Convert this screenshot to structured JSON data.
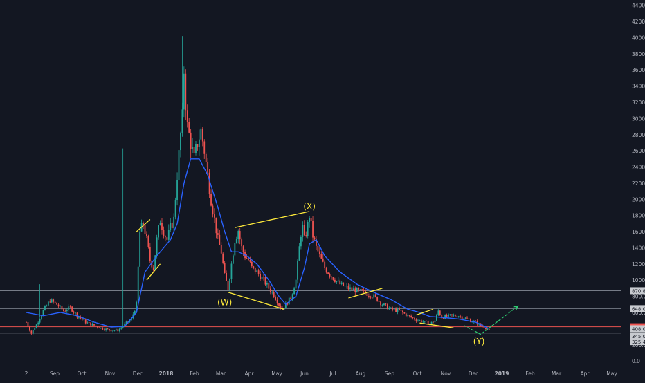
{
  "chart_data": {
    "type": "candlestick",
    "colors": {
      "background": "#131722",
      "up": "#26a69a",
      "down": "#ef5350",
      "ma": "#2962ff",
      "wave": "#ffeb3b",
      "projection": "#2ecc71",
      "level": "#9aa0aa",
      "current_level": "#ef5350",
      "tick_text": "#b2b5be"
    },
    "y_axis": {
      "ticks": [
        "0.0",
        "200.0",
        "400.0",
        "600.0",
        "800.0",
        "1000.0",
        "1200.0",
        "1400.0",
        "1600.0",
        "1800.0",
        "2000.0",
        "2200.0",
        "2400.0",
        "2600.0",
        "2800.0",
        "3000.0",
        "3200.0",
        "3400.0",
        "3600.0",
        "3800.0",
        "4000.0",
        "4200.0",
        "4400.0"
      ],
      "range": [
        -50,
        4440
      ]
    },
    "x_axis": {
      "ticks": [
        "2",
        "Sep",
        "Oct",
        "Nov",
        "Dec",
        "2018",
        "Feb",
        "Mar",
        "Apr",
        "May",
        "Jun",
        "Jul",
        "Aug",
        "Sep",
        "Oct",
        "Nov",
        "Dec",
        "2019",
        "Feb",
        "Mar",
        "Apr",
        "May"
      ],
      "bold_ticks": [
        "2018",
        "2019"
      ]
    },
    "price_levels": [
      {
        "value": 870,
        "label": "870.8",
        "style": "gray"
      },
      {
        "value": 648,
        "label": "648.0",
        "style": "gray"
      },
      {
        "value": 424,
        "label": "424.7",
        "style": "red"
      },
      {
        "value": 408,
        "label": "408.0",
        "style": "gray"
      },
      {
        "value": 345,
        "label": "345.0",
        "style": "gray"
      },
      {
        "value": 325,
        "label": "325.4",
        "style": "none"
      }
    ],
    "price_path": [
      [
        0,
        480
      ],
      [
        3,
        340
      ],
      [
        6,
        450
      ],
      [
        10,
        620
      ],
      [
        14,
        750
      ],
      [
        18,
        700
      ],
      [
        22,
        620
      ],
      [
        26,
        660
      ],
      [
        30,
        560
      ],
      [
        35,
        480
      ],
      [
        40,
        440
      ],
      [
        45,
        400
      ],
      [
        50,
        380
      ],
      [
        54,
        380
      ],
      [
        58,
        450
      ],
      [
        62,
        520
      ],
      [
        65,
        700
      ],
      [
        67,
        1600
      ],
      [
        69,
        1700
      ],
      [
        71,
        1500
      ],
      [
        73,
        1250
      ],
      [
        75,
        1150
      ],
      [
        77,
        1500
      ],
      [
        79,
        1750
      ],
      [
        81,
        1600
      ],
      [
        83,
        1500
      ],
      [
        85,
        1650
      ],
      [
        87,
        1750
      ],
      [
        89,
        2300
      ],
      [
        91,
        2800
      ],
      [
        92,
        3000
      ],
      [
        93,
        3600
      ],
      [
        94,
        3200
      ],
      [
        95,
        2900
      ],
      [
        97,
        2700
      ],
      [
        99,
        2500
      ],
      [
        101,
        2700
      ],
      [
        103,
        2850
      ],
      [
        105,
        2600
      ],
      [
        107,
        2300
      ],
      [
        109,
        2000
      ],
      [
        111,
        1750
      ],
      [
        113,
        1500
      ],
      [
        115,
        1350
      ],
      [
        117,
        1050
      ],
      [
        119,
        900
      ],
      [
        121,
        1200
      ],
      [
        123,
        1500
      ],
      [
        125,
        1620
      ],
      [
        127,
        1400
      ],
      [
        129,
        1300
      ],
      [
        131,
        1250
      ],
      [
        133,
        1150
      ],
      [
        136,
        1100
      ],
      [
        140,
        1000
      ],
      [
        143,
        900
      ],
      [
        146,
        820
      ],
      [
        149,
        700
      ],
      [
        151,
        640
      ],
      [
        153,
        700
      ],
      [
        156,
        780
      ],
      [
        159,
        1000
      ],
      [
        161,
        1400
      ],
      [
        162,
        1580
      ],
      [
        163,
        1650
      ],
      [
        164,
        1500
      ],
      [
        166,
        1680
      ],
      [
        167,
        1800
      ],
      [
        169,
        1550
      ],
      [
        171,
        1400
      ],
      [
        173,
        1300
      ],
      [
        176,
        1150
      ],
      [
        180,
        1050
      ],
      [
        185,
        950
      ],
      [
        190,
        900
      ],
      [
        195,
        870
      ],
      [
        200,
        840
      ],
      [
        205,
        800
      ],
      [
        210,
        700
      ],
      [
        215,
        640
      ],
      [
        220,
        620
      ],
      [
        225,
        560
      ],
      [
        230,
        510
      ],
      [
        235,
        480
      ],
      [
        238,
        460
      ],
      [
        241,
        500
      ],
      [
        243,
        620
      ],
      [
        245,
        540
      ],
      [
        250,
        560
      ],
      [
        255,
        560
      ],
      [
        260,
        520
      ],
      [
        262,
        500
      ],
      [
        265,
        480
      ],
      [
        268,
        440
      ],
      [
        271,
        410
      ],
      [
        273,
        380
      ]
    ],
    "ma_path": [
      [
        0,
        600
      ],
      [
        10,
        560
      ],
      [
        20,
        600
      ],
      [
        30,
        560
      ],
      [
        40,
        480
      ],
      [
        50,
        420
      ],
      [
        58,
        430
      ],
      [
        65,
        600
      ],
      [
        70,
        1100
      ],
      [
        77,
        1300
      ],
      [
        85,
        1500
      ],
      [
        89,
        1700
      ],
      [
        93,
        2200
      ],
      [
        97,
        2500
      ],
      [
        102,
        2500
      ],
      [
        107,
        2300
      ],
      [
        113,
        1900
      ],
      [
        117,
        1600
      ],
      [
        121,
        1350
      ],
      [
        125,
        1350
      ],
      [
        130,
        1300
      ],
      [
        136,
        1200
      ],
      [
        143,
        1000
      ],
      [
        149,
        800
      ],
      [
        153,
        700
      ],
      [
        159,
        800
      ],
      [
        164,
        1150
      ],
      [
        167,
        1450
      ],
      [
        171,
        1500
      ],
      [
        176,
        1300
      ],
      [
        185,
        1100
      ],
      [
        195,
        950
      ],
      [
        205,
        850
      ],
      [
        215,
        760
      ],
      [
        225,
        640
      ],
      [
        232,
        600
      ],
      [
        238,
        550
      ],
      [
        245,
        540
      ],
      [
        255,
        520
      ],
      [
        265,
        480
      ],
      [
        273,
        400
      ]
    ],
    "candle_pixel_ratio": 2.45,
    "waves": [
      {
        "kind": "channel",
        "points": [
          [
            65,
            1600
          ],
          [
            73,
            1750
          ]
        ]
      },
      {
        "kind": "channel",
        "points": [
          [
            71,
            1000
          ],
          [
            79,
            1200
          ]
        ]
      },
      {
        "kind": "channel",
        "points": [
          [
            119,
            850
          ],
          [
            152,
            640
          ]
        ]
      },
      {
        "kind": "channel",
        "points": [
          [
            123,
            1650
          ],
          [
            167,
            1850
          ]
        ]
      },
      {
        "kind": "channel",
        "points": [
          [
            190,
            780
          ],
          [
            210,
            900
          ]
        ]
      },
      {
        "kind": "channel",
        "points": [
          [
            230,
            570
          ],
          [
            240,
            640
          ]
        ]
      },
      {
        "kind": "channel",
        "points": [
          [
            232,
            470
          ],
          [
            252,
            410
          ]
        ]
      }
    ],
    "projection_path": [
      [
        258,
        440
      ],
      [
        268,
        330
      ],
      [
        290,
        680
      ]
    ],
    "wave_labels": [
      {
        "text": "(X)",
        "x": 167,
        "y": 1880
      },
      {
        "text": "(W)",
        "x": 117,
        "y": 690
      },
      {
        "text": "(Y)",
        "x": 267,
        "y": 205
      }
    ]
  }
}
